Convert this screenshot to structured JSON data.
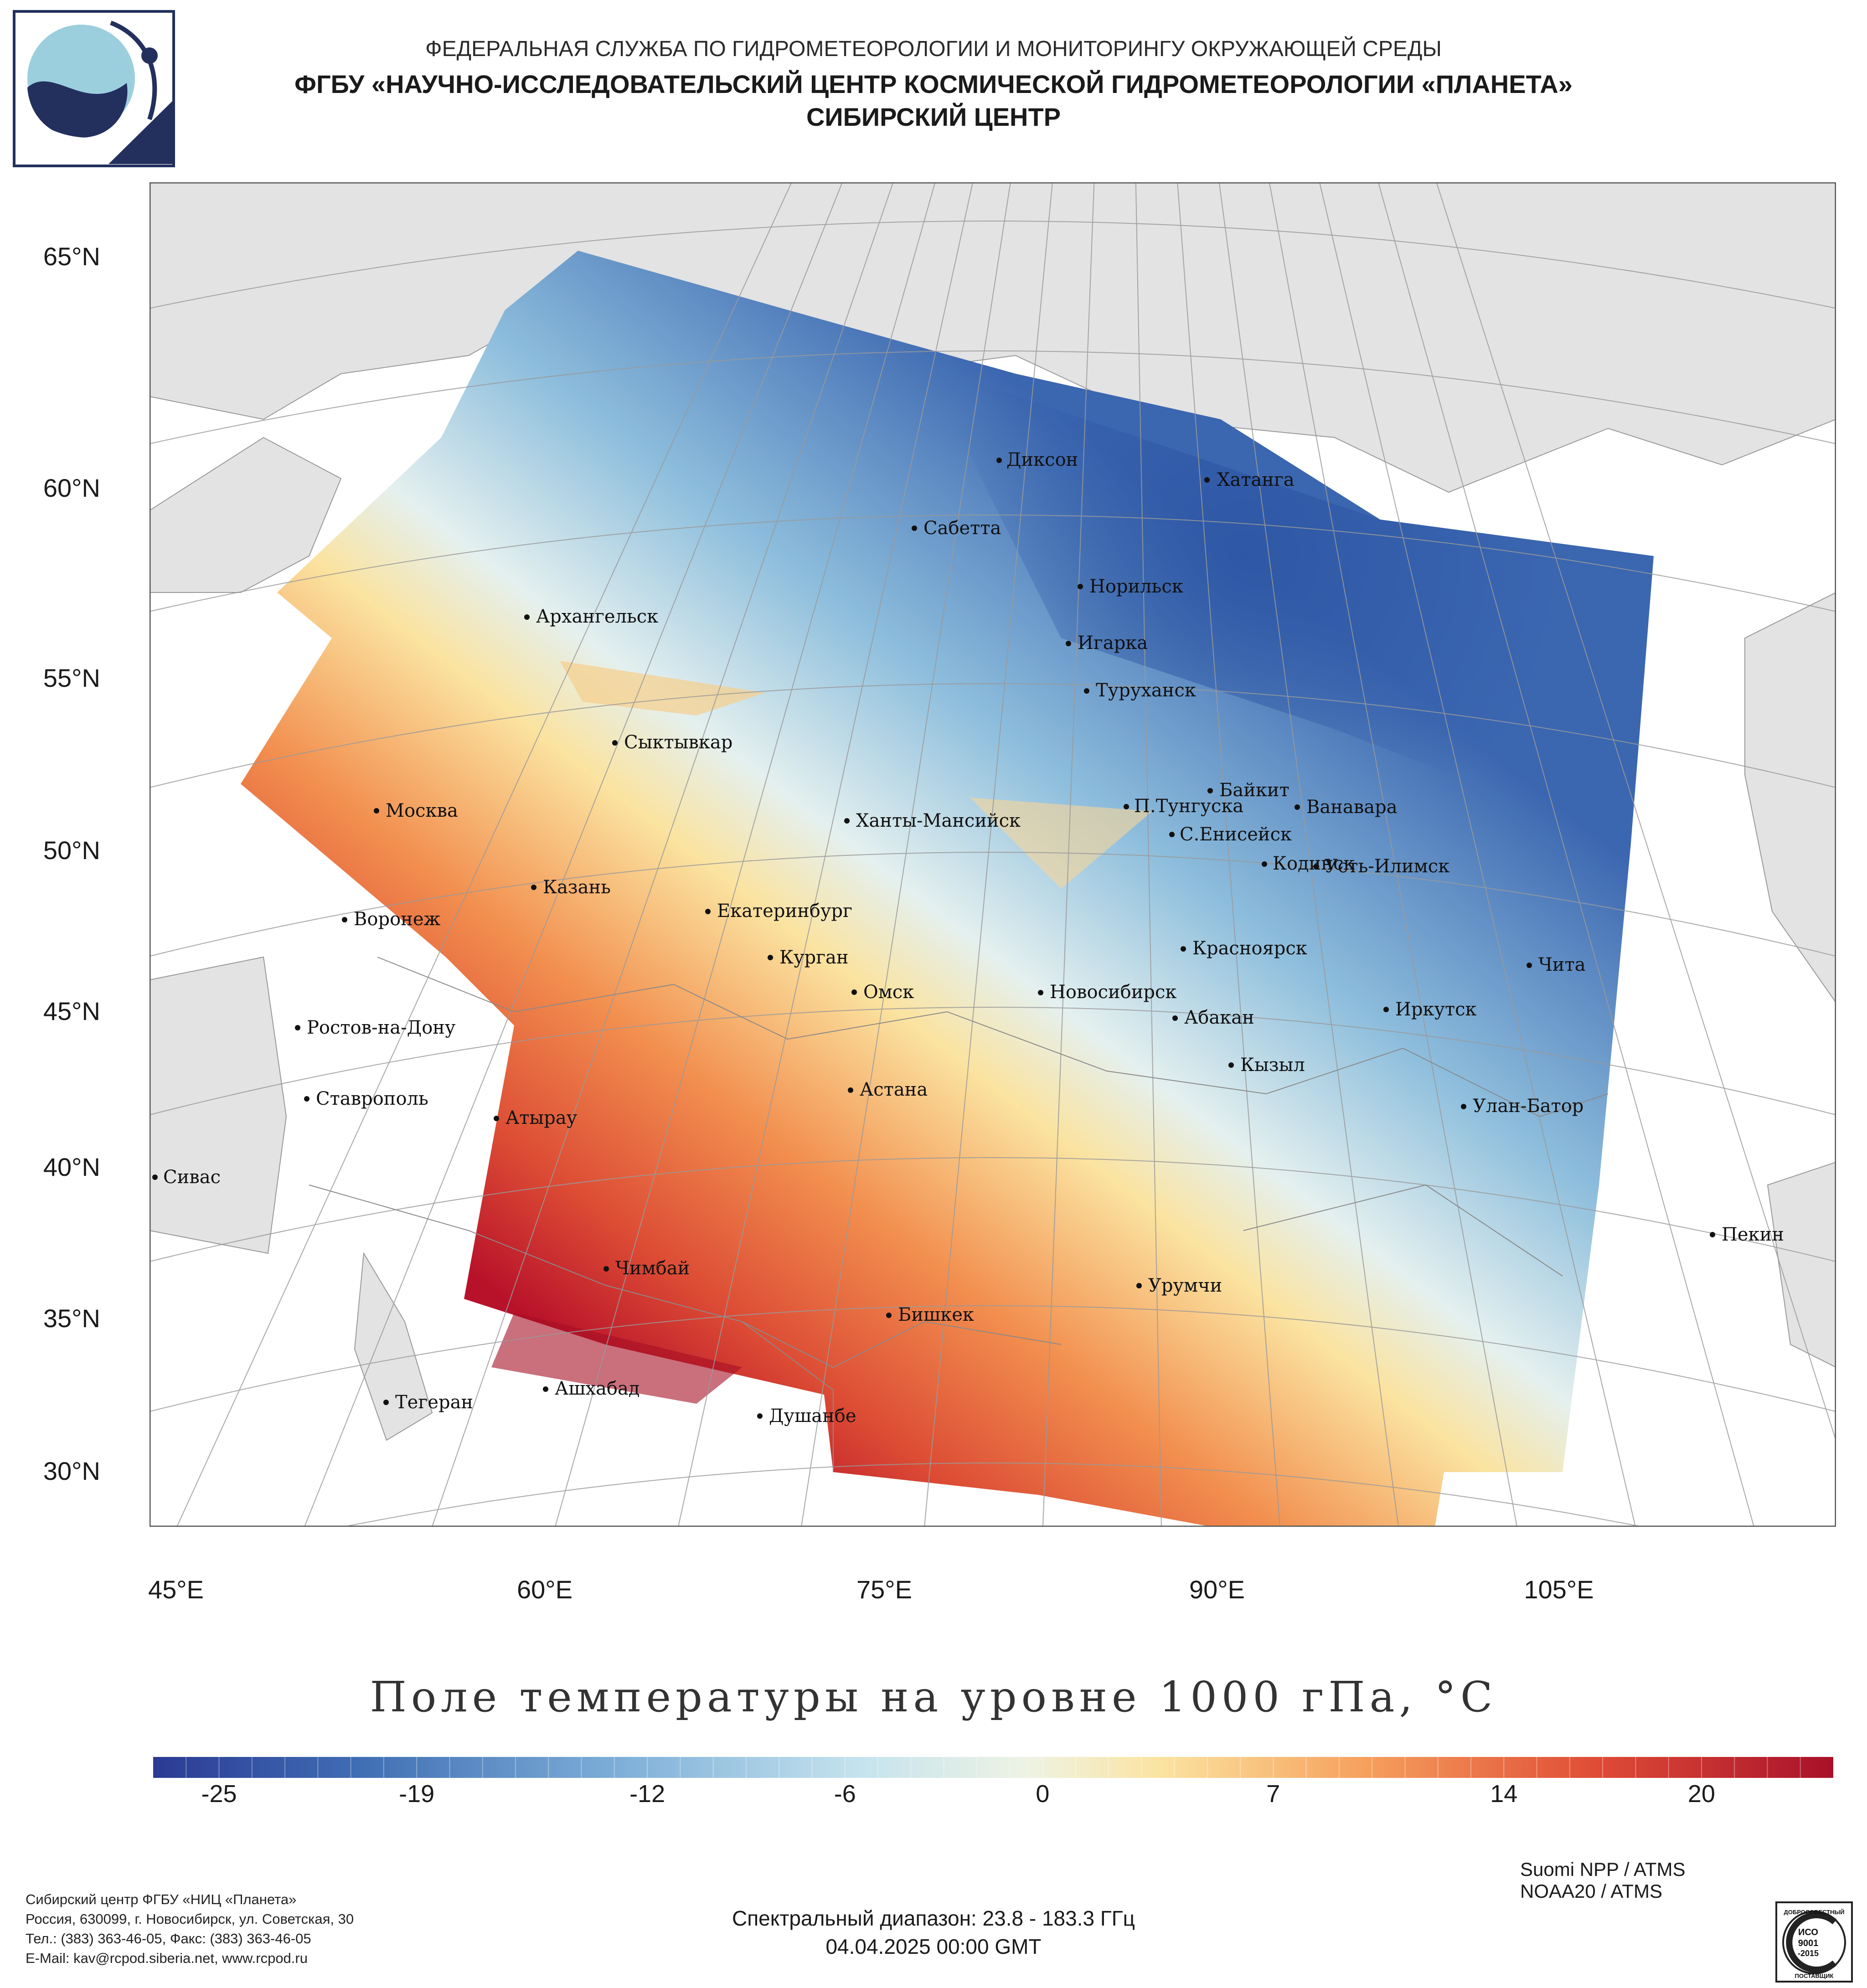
{
  "header": {
    "line1": "ФЕДЕРАЛЬНАЯ СЛУЖБА ПО ГИДРОМЕТЕОРОЛОГИИ И МОНИТОРИНГУ ОКРУЖАЮЩЕЙ СРЕДЫ",
    "line2": "ФГБУ «НАУЧНО-ИССЛЕДОВАТЕЛЬСКИЙ ЦЕНТР КОСМИЧЕСКОЙ ГИДРОМЕТЕОРОЛОГИИ «ПЛАНЕТА»",
    "line3": "СИБИРСКИЙ ЦЕНТР"
  },
  "logo_icon": "planeta-logo",
  "map": {
    "lat_labels": [
      "65°N",
      "60°N",
      "55°N",
      "50°N",
      "45°N",
      "40°N",
      "35°N",
      "30°N"
    ],
    "lon_labels": [
      "45°E",
      "60°E",
      "75°E",
      "90°E",
      "105°E"
    ],
    "cities": [
      "Диксон",
      "Хатанга",
      "Сабетта",
      "Норильск",
      "Архангельск",
      "Игарка",
      "Туруханск",
      "Сыктывкар",
      "Байкит",
      "Москва",
      "П.Тунгуска",
      "Ванавара",
      "Ханты-Мансийск",
      "С.Енисейск",
      "Кодинск",
      "Усть-Илимск",
      "Казань",
      "Воронеж",
      "Екатеринбург",
      "Красноярск",
      "Курган",
      "Чита",
      "Омск",
      "Новосибирск",
      "Иркутск",
      "Ростов-на-Дону",
      "Абакан",
      "Кызыл",
      "Астана",
      "Ставрополь",
      "Улан-Батор",
      "Атырау",
      "Сивас",
      "Пекин",
      "Чимбай",
      "Урумчи",
      "Бишкек",
      "Ашхабад",
      "Тегеран",
      "Душанбе"
    ],
    "colors": {
      "land": "#e3e3e3",
      "sea": "#ffffff",
      "cold": "#3b66b0",
      "neutral": "#f2f0d8",
      "warm": "#c8272b"
    }
  },
  "colorbar": {
    "title": "Поле температуры на уровне 1000 гПа, °С",
    "ticks": [
      "-25",
      "-19",
      "-12",
      "-6",
      "0",
      "7",
      "14",
      "20"
    ],
    "min": -27,
    "max": 24
  },
  "footer": {
    "org_lines": [
      "Сибирский центр ФГБУ «НИЦ «Планета»",
      "Россия, 630099, г. Новосибирск, ул. Советская, 30",
      "Тел.: (383) 363-46-05, Факс: (383) 363-46-05",
      "E-Mail: kav@rcpod.siberia.net, www.rcpod.ru"
    ],
    "satellites": [
      "Suomi NPP / ATMS",
      "NOAA20 / ATMS"
    ],
    "spectral": "Спектральный диапазон: 23.8 - 183.3 ГГц",
    "datetime": "04.04.2025 00:00 GMT",
    "iso_badge": {
      "top": "ДОБРОСОВЕСТНЫЙ",
      "lines": [
        "ИСО",
        "9001",
        "-2015"
      ],
      "bottom": "ПОСТАВЩИК"
    }
  }
}
